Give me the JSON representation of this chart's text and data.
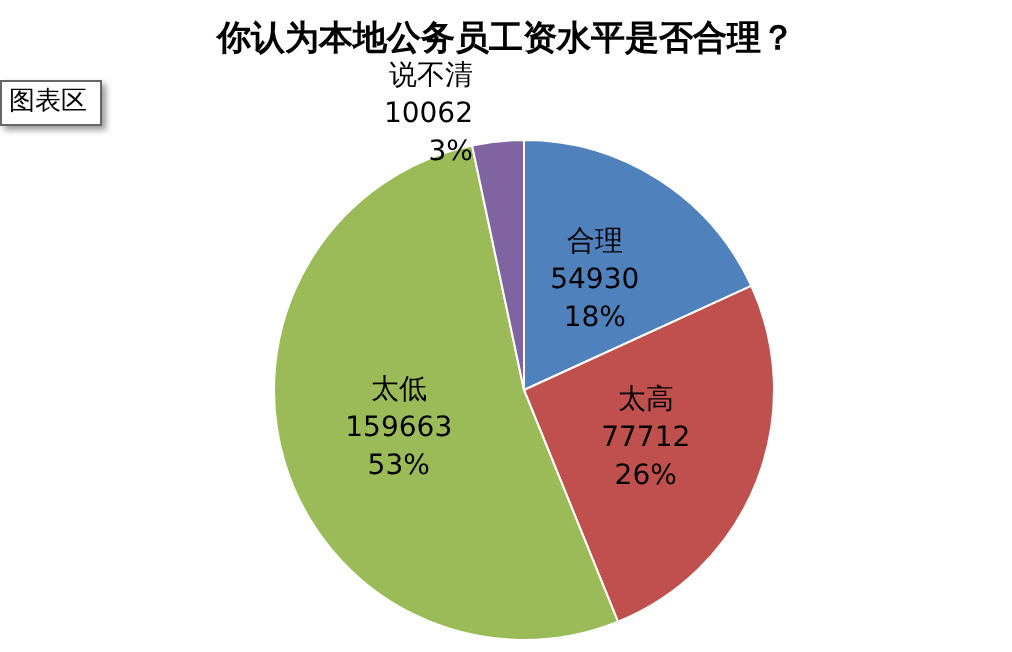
{
  "chart_data": {
    "type": "pie",
    "title": "你认为本地公务员工资水平是否合理？",
    "categories": [
      "合理",
      "太高",
      "太低",
      "说不清"
    ],
    "values": [
      54930,
      77712,
      159663,
      10062
    ],
    "value_labels": [
      "54930\n18%",
      "77712\n26%",
      "159663\n53%",
      "10062\n3%"
    ],
    "colors": [
      "#4f81bd",
      "#c0504d",
      "#9bbb59",
      "#8064a2"
    ],
    "annotations": [
      "图表区"
    ],
    "legend": false
  }
}
